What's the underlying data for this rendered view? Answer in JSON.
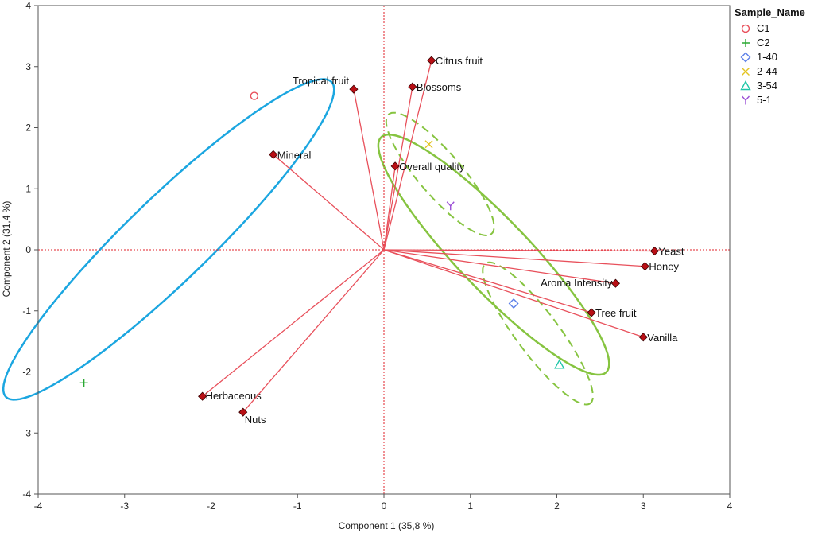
{
  "chart_data": {
    "type": "scatter",
    "subtype": "pca-biplot",
    "title": "",
    "xlabel": "Component 1  (35,8 %)",
    "ylabel": "Component 2  (31,4 %)",
    "xlim": [
      -4,
      4
    ],
    "ylim": [
      -4,
      4
    ],
    "x_ticks": [
      "-4",
      "-3",
      "-2",
      "-1",
      "0",
      "1",
      "2",
      "3",
      "4"
    ],
    "y_ticks": [
      "4",
      "3",
      "2",
      "1",
      "0",
      "-1",
      "-2",
      "-3",
      "-4"
    ],
    "grid": false,
    "reference_lines": {
      "x": 0,
      "y": 0,
      "style": "dotted",
      "color": "#e0202a"
    },
    "legend": {
      "title": "Sample_Name",
      "position": "top-right outside",
      "entries": [
        {
          "label": "C1",
          "marker": "circle",
          "color": "#e8505b"
        },
        {
          "label": "C2",
          "marker": "plus",
          "color": "#2aa832"
        },
        {
          "label": "1-40",
          "marker": "diamond",
          "color": "#5b7fe8"
        },
        {
          "label": "2-44",
          "marker": "x",
          "color": "#e3c420"
        },
        {
          "label": "3-54",
          "marker": "triangle",
          "color": "#1fc6a8"
        },
        {
          "label": "5-1",
          "marker": "y",
          "color": "#9b4fd6"
        }
      ]
    },
    "samples": [
      {
        "name": "C1",
        "x": -1.5,
        "y": 2.52
      },
      {
        "name": "C2",
        "x": -3.47,
        "y": -2.18
      },
      {
        "name": "1-40",
        "x": 1.5,
        "y": -0.88
      },
      {
        "name": "2-44",
        "x": 0.52,
        "y": 1.73
      },
      {
        "name": "3-54",
        "x": 2.03,
        "y": -1.88
      },
      {
        "name": "5-1",
        "x": 0.77,
        "y": 0.72
      }
    ],
    "loadings": [
      {
        "name": "Citrus fruit",
        "x": 0.55,
        "y": 3.1
      },
      {
        "name": "Blossoms",
        "x": 0.33,
        "y": 2.67
      },
      {
        "name": "Tropical fruit",
        "x": -0.35,
        "y": 2.63
      },
      {
        "name": "Mineral",
        "x": -1.28,
        "y": 1.56
      },
      {
        "name": "Overall quality",
        "x": 0.13,
        "y": 1.37
      },
      {
        "name": "Yeast",
        "x": 3.13,
        "y": -0.02
      },
      {
        "name": "Honey",
        "x": 3.02,
        "y": -0.27
      },
      {
        "name": "Aroma Intensity",
        "x": 2.68,
        "y": -0.55
      },
      {
        "name": "Tree fruit",
        "x": 2.4,
        "y": -1.03
      },
      {
        "name": "Vanilla",
        "x": 3.0,
        "y": -1.43
      },
      {
        "name": "Herbaceous",
        "x": -2.1,
        "y": -2.4
      },
      {
        "name": "Nuts",
        "x": -1.63,
        "y": -2.66
      }
    ],
    "loading_color": "#e8505b",
    "loading_marker_color": "#b80f15",
    "ellipses": [
      {
        "group": "C",
        "cx": -2.49,
        "cy": 0.17,
        "rx": 3.2,
        "ry": 0.56,
        "angle_deg": 54.5,
        "color": "#1ba6e0",
        "style": "solid"
      },
      {
        "group": "treated",
        "cx": 1.27,
        "cy": -0.08,
        "rx": 2.33,
        "ry": 0.47,
        "angle_deg": -56.8,
        "color": "#86c440",
        "style": "solid"
      },
      {
        "group": "treated-small-upper",
        "cx": 0.65,
        "cy": 1.24,
        "rx": 1.15,
        "ry": 0.28,
        "angle_deg": -60.0,
        "color": "#86c440",
        "style": "dashed"
      },
      {
        "group": "treated-small-lower",
        "cx": 1.78,
        "cy": -1.37,
        "rx": 1.3,
        "ry": 0.27,
        "angle_deg": -63.0,
        "color": "#86c440",
        "style": "dashed"
      }
    ]
  }
}
